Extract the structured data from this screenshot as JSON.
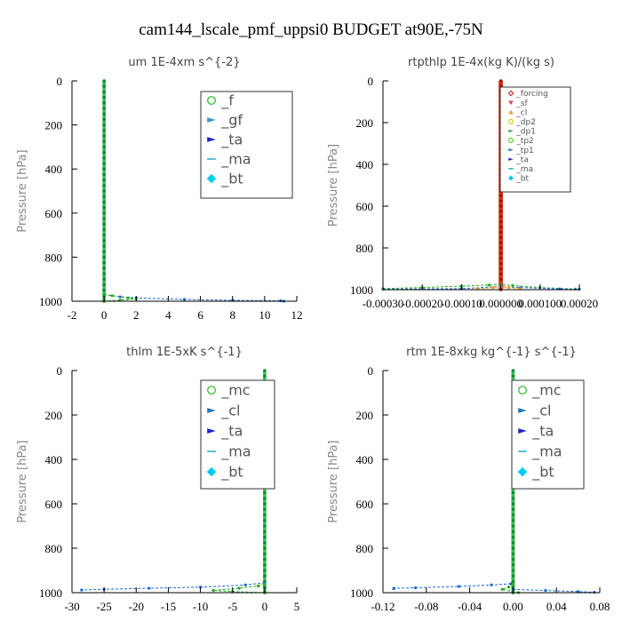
{
  "suptitle": "cam144_lscale_pmf_uppsi0  BUDGET at90E,-75N",
  "chart_data": [
    {
      "type": "line",
      "title": "um   1E-4xm s^{-2}",
      "ylabel": "Pressure [hPa]",
      "xlim": [
        -2,
        12
      ],
      "ylim": [
        1000,
        0
      ],
      "xticks": [
        "-2",
        "0",
        "2",
        "4",
        "6",
        "8",
        "10",
        "12"
      ],
      "xtick_values": [
        -2,
        0,
        2,
        4,
        6,
        8,
        10,
        12
      ],
      "yticks": [
        "0",
        "200",
        "400",
        "600",
        "800",
        "1000"
      ],
      "ytick_values": [
        0,
        200,
        400,
        600,
        800,
        1000
      ],
      "legend_placement": "top-right",
      "legend_size": "large",
      "series": [
        {
          "name": "_f",
          "color": "#22bb22",
          "marker": "circle-open"
        },
        {
          "name": "_gf",
          "color": "#3399cc",
          "marker": "arrow"
        },
        {
          "name": "_ta",
          "color": "#2222cc",
          "marker": "arrow"
        },
        {
          "name": "_ma",
          "color": "#22aacc",
          "marker": "dash"
        },
        {
          "name": "_bt",
          "color": "#00ccee",
          "marker": "diamond"
        }
      ],
      "profiles": [
        {
          "color": "#1a66cc",
          "points": [
            [
              0,
              970
            ],
            [
              1,
              980
            ],
            [
              2,
              985
            ],
            [
              5,
              992
            ],
            [
              8,
              996
            ],
            [
              11,
              998
            ],
            [
              11.2,
              1000
            ]
          ]
        },
        {
          "color": "#22aa22",
          "points": [
            [
              0,
              970
            ],
            [
              0.5,
              975
            ],
            [
              1.5,
              985
            ],
            [
              2,
              990
            ],
            [
              1,
              995
            ],
            [
              0,
              1000
            ]
          ]
        }
      ],
      "band": {
        "color": "#22bb44",
        "x": [
          -0.1,
          0.1
        ]
      }
    },
    {
      "type": "line",
      "title": "rtpthlp   1E-4x(kg K)/(kg s)",
      "ylabel": "Pressure [hPa]",
      "xlim": [
        -0.0003,
        0.0002
      ],
      "ylim": [
        1000,
        0
      ],
      "xticks": [
        "-0.00030",
        "-0.00020",
        "-0.00010",
        "0.000000",
        "0.000100",
        "0.00020"
      ],
      "xtick_values": [
        -0.0003,
        -0.0002,
        -0.0001,
        0.0,
        0.0001,
        0.0002
      ],
      "yticks": [
        "0",
        "200",
        "400",
        "600",
        "800",
        "1000"
      ],
      "ytick_values": [
        0,
        200,
        400,
        600,
        800,
        1000
      ],
      "legend_placement": "top-right",
      "legend_size": "small",
      "series": [
        {
          "name": "_forcing",
          "color": "#cc3333",
          "marker": "diamond-open"
        },
        {
          "name": "_sf",
          "color": "#ee3333",
          "marker": "triangle"
        },
        {
          "name": "_cl",
          "color": "#ee9922",
          "marker": "triangle-up"
        },
        {
          "name": "_dp2",
          "color": "#ddcc22",
          "marker": "circle-open"
        },
        {
          "name": "_dp1",
          "color": "#33aa33",
          "marker": "arrow"
        },
        {
          "name": "_tp2",
          "color": "#55cc33",
          "marker": "circle-open"
        },
        {
          "name": "_tp1",
          "color": "#2277bb",
          "marker": "arrow"
        },
        {
          "name": "_ta",
          "color": "#2222cc",
          "marker": "arrow"
        },
        {
          "name": "_ma",
          "color": "#22aacc",
          "marker": "dash"
        },
        {
          "name": "_bt",
          "color": "#00ccee",
          "marker": "diamond"
        }
      ],
      "profiles": [
        {
          "color": "#22aa22",
          "points": [
            [
              -0.0003,
              995
            ],
            [
              -0.0002,
              990
            ],
            [
              -0.0001,
              983
            ],
            [
              -3e-05,
              978
            ],
            [
              0,
              975
            ],
            [
              3e-05,
              980
            ],
            [
              0.0001,
              990
            ],
            [
              0.00019,
              997
            ]
          ]
        },
        {
          "color": "#1a66cc",
          "points": [
            [
              -0.0003,
              998
            ],
            [
              -0.0001,
              995
            ],
            [
              0,
              985
            ],
            [
              5e-05,
              990
            ],
            [
              0.00015,
              996
            ],
            [
              0.0002,
              998
            ]
          ]
        },
        {
          "color": "#ee9922",
          "points": [
            [
              -6e-05,
              995
            ],
            [
              -2e-05,
              990
            ],
            [
              0,
              985
            ],
            [
              2e-05,
              990
            ],
            [
              5e-05,
              995
            ]
          ]
        }
      ],
      "band": {
        "color": "#cc2200",
        "x": [
          -5.5e-06,
          5.5e-06
        ]
      }
    },
    {
      "type": "line",
      "title": "thlm   1E-5xK s^{-1}",
      "ylabel": "Pressure [hPa]",
      "xlim": [
        -30,
        5
      ],
      "ylim": [
        1000,
        0
      ],
      "xticks": [
        "-30",
        "-25",
        "-20",
        "-15",
        "-10",
        "-5",
        "0",
        "5"
      ],
      "xtick_values": [
        -30,
        -25,
        -20,
        -15,
        -10,
        -5,
        0,
        5
      ],
      "yticks": [
        "0",
        "200",
        "400",
        "600",
        "800",
        "1000"
      ],
      "ytick_values": [
        0,
        200,
        400,
        600,
        800,
        1000
      ],
      "legend_placement": "top-right",
      "legend_size": "large",
      "series": [
        {
          "name": "_mc",
          "color": "#22bb22",
          "marker": "circle-open"
        },
        {
          "name": "_cl",
          "color": "#2277bb",
          "marker": "arrow"
        },
        {
          "name": "_ta",
          "color": "#2222cc",
          "marker": "arrow"
        },
        {
          "name": "_ma",
          "color": "#22aacc",
          "marker": "dash"
        },
        {
          "name": "_bt",
          "color": "#00ccee",
          "marker": "diamond"
        }
      ],
      "profiles": [
        {
          "color": "#1a66cc",
          "points": [
            [
              0,
              955
            ],
            [
              -3,
              965
            ],
            [
              -10,
              975
            ],
            [
              -18,
              980
            ],
            [
              -25,
              985
            ],
            [
              -28.5,
              988
            ]
          ]
        },
        {
          "color": "#22aa22",
          "points": [
            [
              0,
              960
            ],
            [
              -1,
              970
            ],
            [
              -4,
              980
            ],
            [
              -8,
              990
            ],
            [
              -5,
              995
            ],
            [
              0,
              1000
            ]
          ]
        }
      ],
      "band": {
        "color": "#22bb44",
        "x": [
          -0.25,
          0.25
        ]
      }
    },
    {
      "type": "line",
      "title": "rtm   1E-8xkg kg^{-1} s^{-1}",
      "ylabel": "Pressure [hPa]",
      "xlim": [
        -0.12,
        0.08
      ],
      "ylim": [
        1000,
        0
      ],
      "xticks": [
        "-0.12",
        "-0.08",
        "-0.04",
        "0.00",
        "0.04",
        "0.08"
      ],
      "xtick_values": [
        -0.12,
        -0.08,
        -0.04,
        0.0,
        0.04,
        0.08
      ],
      "yticks": [
        "0",
        "200",
        "400",
        "600",
        "800",
        "1000"
      ],
      "ytick_values": [
        0,
        200,
        400,
        600,
        800,
        1000
      ],
      "legend_placement": "top-right",
      "legend_size": "large",
      "series": [
        {
          "name": "_mc",
          "color": "#22bb22",
          "marker": "circle-open"
        },
        {
          "name": "_cl",
          "color": "#2277bb",
          "marker": "arrow"
        },
        {
          "name": "_ta",
          "color": "#2222cc",
          "marker": "arrow"
        },
        {
          "name": "_ma",
          "color": "#22aacc",
          "marker": "dash"
        },
        {
          "name": "_bt",
          "color": "#00ccee",
          "marker": "diamond"
        }
      ],
      "profiles": [
        {
          "color": "#1a66cc",
          "points": [
            [
              -0.002,
              960
            ],
            [
              -0.02,
              965
            ],
            [
              -0.05,
              972
            ],
            [
              -0.09,
              978
            ],
            [
              -0.11,
              980
            ],
            [
              -0.11,
              982
            ]
          ]
        },
        {
          "color": "#1a66cc",
          "points": [
            [
              0,
              985
            ],
            [
              0.03,
              990
            ],
            [
              0.06,
              995
            ],
            [
              0.075,
              998
            ]
          ]
        },
        {
          "color": "#22aa22",
          "points": [
            [
              0,
              960
            ],
            [
              -0.004,
              975
            ],
            [
              -0.01,
              985
            ],
            [
              0,
              995
            ],
            [
              0.005,
              1000
            ]
          ]
        }
      ],
      "band": {
        "color": "#22bb44",
        "x": [
          -0.0016,
          0.0016
        ]
      }
    }
  ]
}
